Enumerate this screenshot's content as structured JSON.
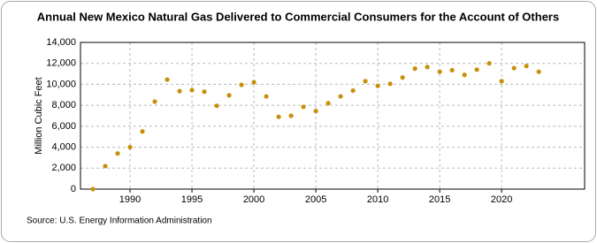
{
  "chart_data": {
    "type": "scatter",
    "title": "Annual New Mexico Natural Gas Delivered to Commercial Consumers for the Account of Others",
    "y_label": "Million Cubic Feet",
    "source": "Source: U.S. Energy Information Administration",
    "color": "#c8900a",
    "x": [
      1987,
      1988,
      1989,
      1990,
      1991,
      1992,
      1993,
      1994,
      1995,
      1996,
      1997,
      1998,
      1999,
      2000,
      2001,
      2002,
      2003,
      2004,
      2005,
      2006,
      2007,
      2008,
      2009,
      2010,
      2011,
      2012,
      2013,
      2014,
      2015,
      2016,
      2017,
      2018,
      2019,
      2020,
      2021,
      2022,
      2023
    ],
    "values": [
      0,
      2200,
      3400,
      4000,
      5500,
      8350,
      10450,
      9350,
      9450,
      9300,
      7950,
      8950,
      9950,
      10200,
      8850,
      6900,
      7000,
      7850,
      7450,
      8200,
      8850,
      9400,
      10300,
      9850,
      10050,
      10650,
      11500,
      11650,
      11200,
      11350,
      10900,
      11400,
      12000,
      10300,
      11550,
      11750,
      11200
    ],
    "xlim": [
      1986,
      2026.7
    ],
    "xticks": [
      1990,
      1995,
      2000,
      2005,
      2010,
      2015,
      2020
    ],
    "ylim": [
      0,
      14000
    ],
    "yticks": [
      0,
      {
        "value": 2000,
        "label": "2,000"
      },
      {
        "value": 4000,
        "label": "4,000"
      },
      {
        "value": 6000,
        "label": "6,000"
      },
      {
        "value": 8000,
        "label": "8,000"
      },
      {
        "value": 10000,
        "label": "10,000"
      },
      {
        "value": 12000,
        "label": "12,000"
      },
      {
        "value": 14000,
        "label": "14,000"
      }
    ],
    "grid": true
  }
}
